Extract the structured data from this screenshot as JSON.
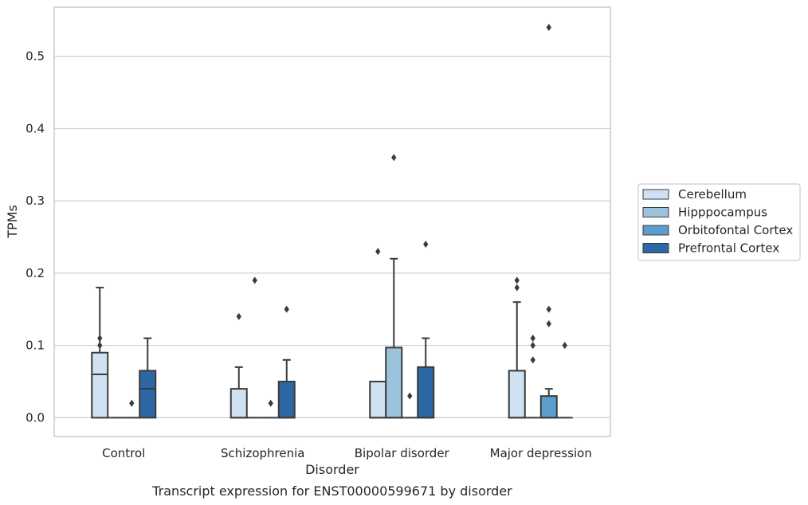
{
  "chart_data": {
    "type": "box",
    "title": "Transcript expression for ENST00000599671 by disorder",
    "xlabel": "Disorder",
    "ylabel": "TPMs",
    "categories": [
      "Control",
      "Schizophrenia",
      "Bipolar disorder",
      "Major depression"
    ],
    "ylim": [
      -0.026,
      0.568
    ],
    "yticks": [
      0.0,
      0.1,
      0.2,
      0.3,
      0.4,
      0.5
    ],
    "ytick_labels": [
      "0.0",
      "0.1",
      "0.2",
      "0.3",
      "0.4",
      "0.5"
    ],
    "grid": "horizontal",
    "legend_position": "right",
    "series": [
      {
        "name": "Cerebellum",
        "color": "#d0e1f2",
        "boxes": [
          {
            "q1": 0.0,
            "median": 0.06,
            "q3": 0.09,
            "whisker_low": 0.0,
            "whisker_high": 0.18,
            "outliers": [
              0.11,
              0.1
            ]
          },
          {
            "q1": 0.0,
            "median": 0.0,
            "q3": 0.04,
            "whisker_low": 0.0,
            "whisker_high": 0.07,
            "outliers": [
              0.14
            ]
          },
          {
            "q1": 0.0,
            "median": 0.0,
            "q3": 0.05,
            "whisker_low": 0.0,
            "whisker_high": 0.05,
            "outliers": [
              0.23
            ]
          },
          {
            "q1": 0.0,
            "median": 0.0,
            "q3": 0.065,
            "whisker_low": 0.0,
            "whisker_high": 0.16,
            "outliers": [
              0.19,
              0.18
            ]
          }
        ]
      },
      {
        "name": "Hipppocampus",
        "color": "#9cc3dc",
        "boxes": [
          {
            "q1": 0.0,
            "median": 0.0,
            "q3": 0.0,
            "whisker_low": 0.0,
            "whisker_high": 0.0,
            "outliers": []
          },
          {
            "q1": 0.0,
            "median": 0.0,
            "q3": 0.0,
            "whisker_low": 0.0,
            "whisker_high": 0.0,
            "outliers": [
              0.19
            ]
          },
          {
            "q1": 0.0,
            "median": 0.0,
            "q3": 0.097,
            "whisker_low": 0.0,
            "whisker_high": 0.22,
            "outliers": [
              0.36
            ]
          },
          {
            "q1": 0.0,
            "median": 0.0,
            "q3": 0.0,
            "whisker_low": 0.0,
            "whisker_high": 0.0,
            "outliers": [
              0.11,
              0.1,
              0.08
            ]
          }
        ]
      },
      {
        "name": "Orbitofontal Cortex",
        "color": "#5b9dcd",
        "boxes": [
          {
            "q1": 0.0,
            "median": 0.0,
            "q3": 0.0,
            "whisker_low": 0.0,
            "whisker_high": 0.0,
            "outliers": [
              0.02
            ]
          },
          {
            "q1": 0.0,
            "median": 0.0,
            "q3": 0.0,
            "whisker_low": 0.0,
            "whisker_high": 0.0,
            "outliers": [
              0.02
            ]
          },
          {
            "q1": 0.0,
            "median": 0.0,
            "q3": 0.0,
            "whisker_low": 0.0,
            "whisker_high": 0.0,
            "outliers": [
              0.03
            ]
          },
          {
            "q1": 0.0,
            "median": 0.0,
            "q3": 0.03,
            "whisker_low": 0.0,
            "whisker_high": 0.04,
            "outliers": [
              0.54,
              0.15,
              0.13
            ]
          }
        ]
      },
      {
        "name": "Prefrontal Cortex",
        "color": "#2d68a4",
        "boxes": [
          {
            "q1": 0.0,
            "median": 0.04,
            "q3": 0.065,
            "whisker_low": 0.0,
            "whisker_high": 0.11,
            "outliers": []
          },
          {
            "q1": 0.0,
            "median": 0.0,
            "q3": 0.05,
            "whisker_low": 0.0,
            "whisker_high": 0.08,
            "outliers": [
              0.15
            ]
          },
          {
            "q1": 0.0,
            "median": 0.0,
            "q3": 0.07,
            "whisker_low": 0.0,
            "whisker_high": 0.11,
            "outliers": [
              0.24
            ]
          },
          {
            "q1": 0.0,
            "median": 0.0,
            "q3": 0.0,
            "whisker_low": 0.0,
            "whisker_high": 0.0,
            "outliers": [
              0.1
            ]
          }
        ]
      }
    ]
  }
}
